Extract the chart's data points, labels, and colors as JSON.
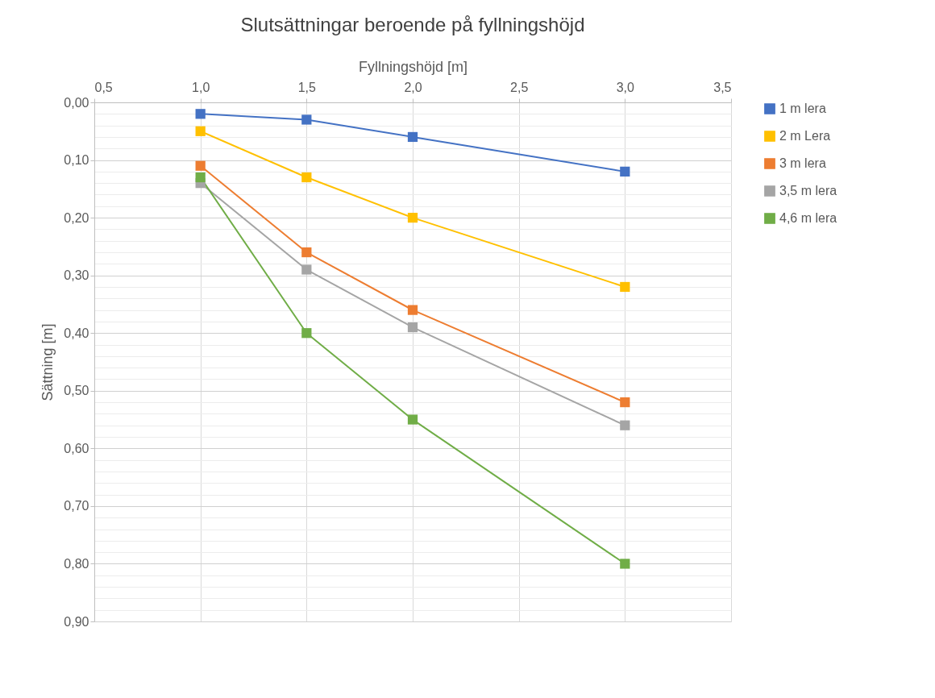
{
  "chart_data": {
    "type": "line",
    "title": "Slutsättningar beroende på fyllningshöjd",
    "xlabel": "Fyllningshöjd [m]",
    "ylabel": "Sättning [m]",
    "x": [
      1,
      1.5,
      2,
      3
    ],
    "series": [
      {
        "name": "1 m lera",
        "color": "#4472c4",
        "values": [
          0.02,
          0.03,
          0.06,
          0.12
        ]
      },
      {
        "name": "2 m Lera",
        "color": "#ffc000",
        "values": [
          0.05,
          0.13,
          0.2,
          0.32
        ]
      },
      {
        "name": "3 m lera",
        "color": "#ed7d31",
        "values": [
          0.11,
          0.26,
          0.36,
          0.52
        ]
      },
      {
        "name": "3,5 m lera",
        "color": "#a5a5a5",
        "values": [
          0.14,
          0.29,
          0.39,
          0.56
        ]
      },
      {
        "name": "4,6 m lera",
        "color": "#70ad47",
        "values": [
          0.13,
          0.4,
          0.55,
          0.8
        ]
      }
    ],
    "xlim": [
      0.5,
      3.5
    ],
    "xticks": [
      {
        "value": 0.5,
        "label": "0,5"
      },
      {
        "value": 1,
        "label": "1,0"
      },
      {
        "value": 1.5,
        "label": "1,5"
      },
      {
        "value": 2,
        "label": "2,0"
      },
      {
        "value": 2.5,
        "label": "2,5"
      },
      {
        "value": 3,
        "label": "3,0"
      },
      {
        "value": 3.5,
        "label": "3,5"
      }
    ],
    "ylim": [
      0.9,
      0
    ],
    "yticks": [
      {
        "value": 0,
        "label": "0,00"
      },
      {
        "value": 0.02,
        "label": null
      },
      {
        "value": 0.04,
        "label": null
      },
      {
        "value": 0.06,
        "label": null
      },
      {
        "value": 0.08,
        "label": null
      },
      {
        "value": 0.1,
        "label": "0,10"
      },
      {
        "value": 0.12,
        "label": null
      },
      {
        "value": 0.14,
        "label": null
      },
      {
        "value": 0.16,
        "label": null
      },
      {
        "value": 0.18,
        "label": null
      },
      {
        "value": 0.2,
        "label": "0,20"
      },
      {
        "value": 0.22,
        "label": null
      },
      {
        "value": 0.24,
        "label": null
      },
      {
        "value": 0.26,
        "label": null
      },
      {
        "value": 0.28,
        "label": null
      },
      {
        "value": 0.3,
        "label": "0,30"
      },
      {
        "value": 0.32,
        "label": null
      },
      {
        "value": 0.34,
        "label": null
      },
      {
        "value": 0.36,
        "label": null
      },
      {
        "value": 0.38,
        "label": null
      },
      {
        "value": 0.4,
        "label": "0,40"
      },
      {
        "value": 0.42,
        "label": null
      },
      {
        "value": 0.44,
        "label": null
      },
      {
        "value": 0.46,
        "label": null
      },
      {
        "value": 0.48,
        "label": null
      },
      {
        "value": 0.5,
        "label": "0,50"
      },
      {
        "value": 0.52,
        "label": null
      },
      {
        "value": 0.54,
        "label": null
      },
      {
        "value": 0.56,
        "label": null
      },
      {
        "value": 0.58,
        "label": null
      },
      {
        "value": 0.6,
        "label": "0,60"
      },
      {
        "value": 0.62,
        "label": null
      },
      {
        "value": 0.64,
        "label": null
      },
      {
        "value": 0.66,
        "label": null
      },
      {
        "value": 0.68,
        "label": null
      },
      {
        "value": 0.7,
        "label": "0,70"
      },
      {
        "value": 0.72,
        "label": null
      },
      {
        "value": 0.74,
        "label": null
      },
      {
        "value": 0.76,
        "label": null
      },
      {
        "value": 0.78,
        "label": null
      },
      {
        "value": 0.8,
        "label": "0,80"
      },
      {
        "value": 0.82,
        "label": null
      },
      {
        "value": 0.84,
        "label": null
      },
      {
        "value": 0.86,
        "label": null
      },
      {
        "value": 0.88,
        "label": null
      },
      {
        "value": 0.9,
        "label": "0,90"
      }
    ],
    "grid": true,
    "legend": "right",
    "marker": "square",
    "line_style": "solid",
    "tick_labels": "xy"
  }
}
